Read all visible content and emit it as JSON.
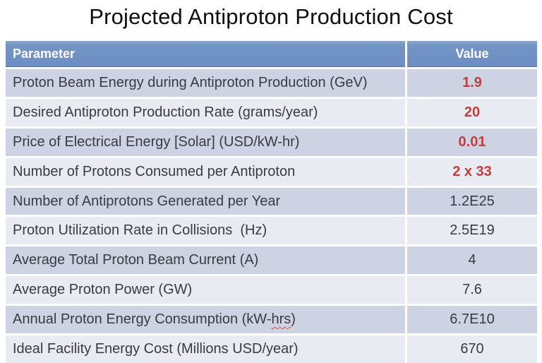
{
  "title": "Projected Antiproton Production Cost",
  "table": {
    "columns": [
      {
        "label": "Parameter"
      },
      {
        "label": "Value"
      }
    ],
    "rows": [
      {
        "parameter": "Proton Beam Energy during Antiproton Production (GeV)",
        "value": "1.9",
        "highlight": true
      },
      {
        "parameter": "Desired Antiproton Production Rate (grams/year)",
        "value": "20",
        "highlight": true
      },
      {
        "parameter": "Price of Electrical Energy [Solar] (USD/kW-hr)",
        "value": "0.01",
        "highlight": true
      },
      {
        "parameter": "Number of Protons Consumed per Antiproton",
        "value": "2 x 33",
        "highlight": true
      },
      {
        "parameter": "Number of Antiprotons Generated per Year",
        "value": "1.2E25",
        "highlight": false
      },
      {
        "parameter": "Proton Utilization Rate in Collisions  (Hz)",
        "value": "2.5E19",
        "highlight": false
      },
      {
        "parameter": "Average Total Proton Beam Current (A)",
        "value": "4",
        "highlight": false
      },
      {
        "parameter": "Average Proton Power (GW)",
        "value": "7.6",
        "highlight": false
      },
      {
        "parameter": "Annual Proton Energy Consumption (kW-hrs)",
        "value": "6.7E10",
        "highlight": false,
        "spellcheck_underline": "hrs"
      },
      {
        "parameter": "Ideal Facility Energy Cost (Millions USD/year)",
        "value": "670",
        "highlight": false
      }
    ]
  },
  "colors": {
    "header_bg": "#6d8ec1",
    "header_text": "#ffffff",
    "row_odd_bg": "#cdd3e3",
    "row_even_bg": "#e9ebf3",
    "body_text": "#3a3b42",
    "highlight_value_text": "#c0413b",
    "spellcheck_squiggle": "#de5146",
    "title_text": "#0f0f0f"
  }
}
